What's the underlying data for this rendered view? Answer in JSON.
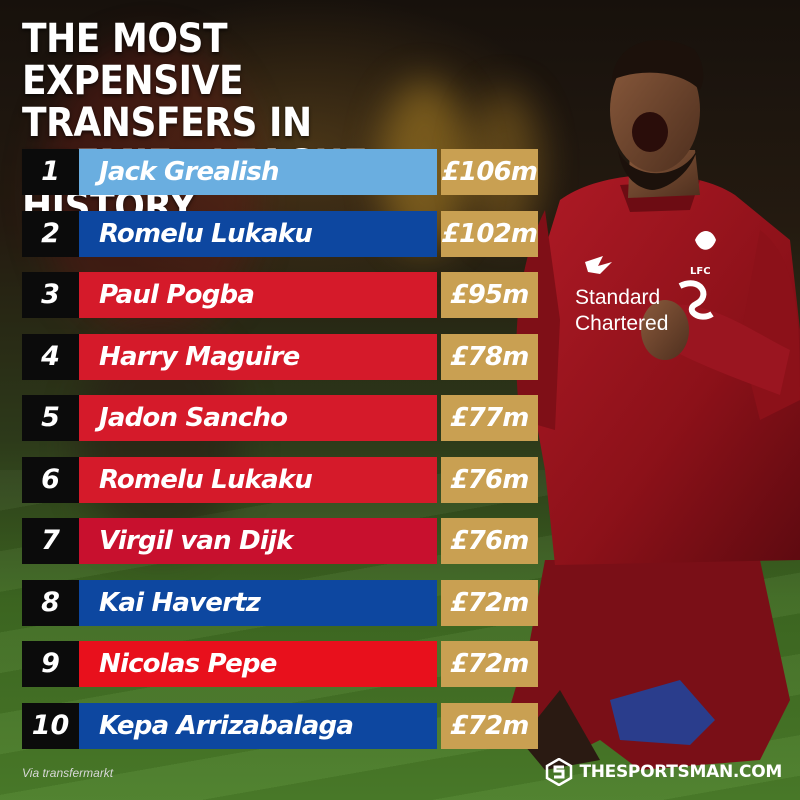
{
  "title": "THE MOST EXPENSIVE TRANSFERS IN PREMIER LEAGUE HISTORY...",
  "transfers": [
    {
      "rank": "1",
      "player": "Jack Grealish",
      "fee": "£106m",
      "color": "#6aaee0"
    },
    {
      "rank": "2",
      "player": "Romelu Lukaku",
      "fee": "£102m",
      "color": "#0d47a0"
    },
    {
      "rank": "3",
      "player": "Paul Pogba",
      "fee": "£95m",
      "color": "#d51a2a"
    },
    {
      "rank": "4",
      "player": "Harry Maguire",
      "fee": "£78m",
      "color": "#d51a2a"
    },
    {
      "rank": "5",
      "player": "Jadon Sancho",
      "fee": "£77m",
      "color": "#d51a2a"
    },
    {
      "rank": "6",
      "player": "Romelu Lukaku",
      "fee": "£76m",
      "color": "#d51a2a"
    },
    {
      "rank": "7",
      "player": "Virgil van Dijk",
      "fee": "£76m",
      "color": "#c8102e"
    },
    {
      "rank": "8",
      "player": "Kai Havertz",
      "fee": "£72m",
      "color": "#0d47a0"
    },
    {
      "rank": "9",
      "player": "Nicolas Pepe",
      "fee": "£72m",
      "color": "#e8101c"
    },
    {
      "rank": "10",
      "player": "Kepa Arrizabalaga",
      "fee": "£72m",
      "color": "#0d47a0"
    }
  ],
  "fee_color": "#c9a052",
  "source": "Via transfermarkt",
  "brand": "THESPORTSMAN.COM",
  "brand_icon": "sportsman-logo-icon",
  "shirt": {
    "sponsor_line1": "Standard",
    "sponsor_line2": "Chartered",
    "crest_text": "LFC"
  }
}
